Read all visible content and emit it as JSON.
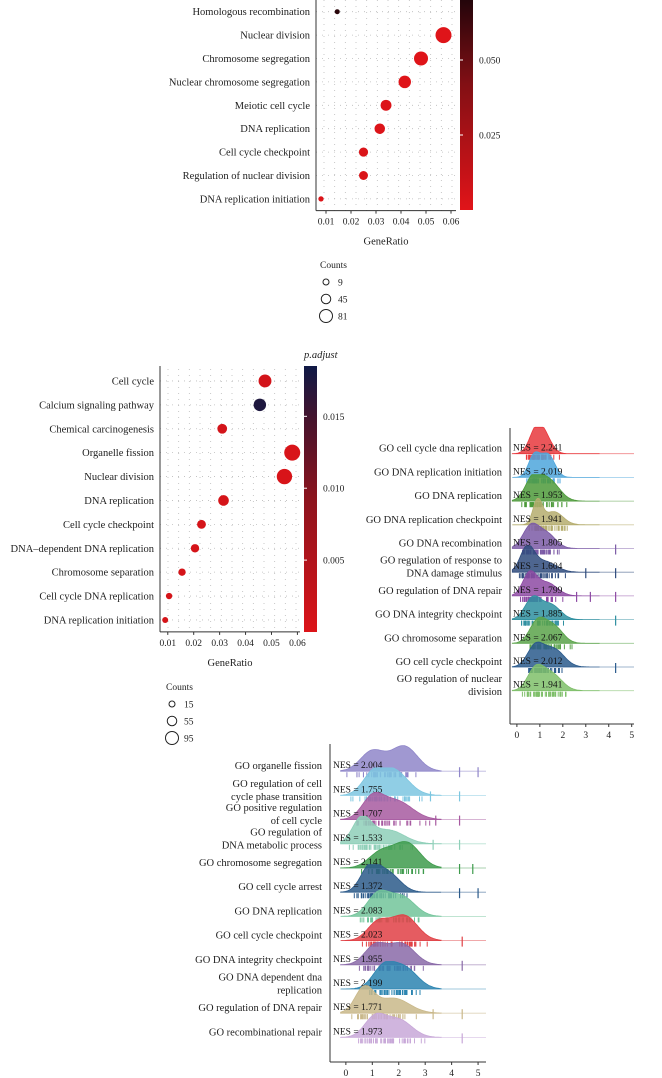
{
  "chart_data": [
    {
      "id": "dot1",
      "type": "scatter",
      "subtype": "dotplot",
      "xlabel": "GeneRatio",
      "xlim": [
        0.006,
        0.062
      ],
      "xticks": [
        "0.01",
        "0.02",
        "0.03",
        "0.04",
        "0.05",
        "0.06"
      ],
      "xtick_values": [
        0.01,
        0.02,
        0.03,
        0.04,
        0.05,
        0.06
      ],
      "colorbar_title": "",
      "colorbar_range": [
        0.0,
        0.07
      ],
      "colorbar_ticks": [
        "0.050",
        "0.025"
      ],
      "colorbar_tick_values": [
        0.05,
        0.025
      ],
      "size_legend_title": "Counts",
      "size_legend": [
        {
          "label": "9",
          "value": 9
        },
        {
          "label": "45",
          "value": 45
        },
        {
          "label": "81",
          "value": 81
        }
      ],
      "size_range": [
        9,
        81
      ],
      "terms": [
        {
          "term": "Homologous recombination",
          "ratio": 0.0145,
          "count": 9,
          "p": 0.068
        },
        {
          "term": "Nuclear division",
          "ratio": 0.057,
          "count": 81,
          "p": 0.001
        },
        {
          "term": "Chromosome segregation",
          "ratio": 0.048,
          "count": 68,
          "p": 0.001
        },
        {
          "term": "Nuclear chromosome segregation",
          "ratio": 0.0415,
          "count": 58,
          "p": 0.001
        },
        {
          "term": "Meiotic cell cycle",
          "ratio": 0.034,
          "count": 48,
          "p": 0.002
        },
        {
          "term": "DNA replication",
          "ratio": 0.0315,
          "count": 45,
          "p": 0.002
        },
        {
          "term": "Cell cycle checkpoint",
          "ratio": 0.025,
          "count": 36,
          "p": 0.003
        },
        {
          "term": "Regulation of nuclear division",
          "ratio": 0.025,
          "count": 35,
          "p": 0.003
        },
        {
          "term": "DNA replication initiation",
          "ratio": 0.008,
          "count": 11,
          "p": 0.002
        }
      ]
    },
    {
      "id": "dot2",
      "type": "scatter",
      "subtype": "dotplot",
      "xlabel": "GeneRatio",
      "xlim": [
        0.007,
        0.061
      ],
      "xticks": [
        "0.01",
        "0.02",
        "0.03",
        "0.04",
        "0.05",
        "0.06"
      ],
      "xtick_values": [
        0.01,
        0.02,
        0.03,
        0.04,
        0.05,
        0.06
      ],
      "colorbar_title": "p.adjust",
      "colorbar_range": [
        0.0,
        0.0185
      ],
      "colorbar_ticks": [
        "0.015",
        "0.010",
        "0.005"
      ],
      "colorbar_tick_values": [
        0.015,
        0.01,
        0.005
      ],
      "size_legend_title": "Counts",
      "size_legend": [
        {
          "label": "15",
          "value": 15
        },
        {
          "label": "55",
          "value": 55
        },
        {
          "label": "95",
          "value": 95
        }
      ],
      "size_range": [
        15,
        95
      ],
      "terms": [
        {
          "term": "Cell cycle",
          "ratio": 0.0475,
          "count": 70,
          "p": 0.001
        },
        {
          "term": "Calcium signaling pathway",
          "ratio": 0.0455,
          "count": 67,
          "p": 0.0175
        },
        {
          "term": "Chemical carcinogenesis",
          "ratio": 0.031,
          "count": 45,
          "p": 0.001
        },
        {
          "term": "Organelle fission",
          "ratio": 0.058,
          "count": 95,
          "p": 0.0005
        },
        {
          "term": "Nuclear division",
          "ratio": 0.055,
          "count": 90,
          "p": 0.0005
        },
        {
          "term": "DNA replication",
          "ratio": 0.0315,
          "count": 52,
          "p": 0.0008
        },
        {
          "term": "Cell cycle checkpoint",
          "ratio": 0.023,
          "count": 38,
          "p": 0.0008
        },
        {
          "term": "DNA–dependent DNA replication",
          "ratio": 0.0205,
          "count": 34,
          "p": 0.0008
        },
        {
          "term": "Chromosome separation",
          "ratio": 0.0155,
          "count": 26,
          "p": 0.0008
        },
        {
          "term": "Cell cycle DNA replication",
          "ratio": 0.0105,
          "count": 18,
          "p": 0.0008
        },
        {
          "term": "DNA replication initiation",
          "ratio": 0.009,
          "count": 15,
          "p": 0.0008
        }
      ]
    },
    {
      "id": "ridge1",
      "type": "area",
      "subtype": "ridgeplot",
      "xlim": [
        -0.3,
        5.1
      ],
      "xticks": [
        "0",
        "1",
        "2",
        "3",
        "4",
        "5"
      ],
      "xtick_values": [
        0,
        1,
        2,
        3,
        4,
        5
      ],
      "series": [
        {
          "term": "GO cell cycle dna replication",
          "nes_text": "NES = 2.241",
          "color": "#e8383d",
          "peaks": [
            [
              0.85,
              0.3,
              1.0
            ],
            [
              1.25,
              0.3,
              0.55
            ]
          ],
          "outliers": []
        },
        {
          "term": "GO DNA replication initiation",
          "nes_text": "NES = 2.019",
          "color": "#4ea6dc",
          "peaks": [
            [
              0.75,
              0.25,
              0.9
            ],
            [
              1.35,
              0.3,
              0.95
            ]
          ],
          "outliers": []
        },
        {
          "term": "GO DNA replication",
          "nes_text": "NES = 1.953",
          "color": "#4d9a3a",
          "peaks": [
            [
              0.7,
              0.35,
              0.9
            ],
            [
              1.4,
              0.45,
              0.85
            ]
          ],
          "outliers": []
        },
        {
          "term": "GO DNA replication checkpoint",
          "nes_text": "NES = 1.941",
          "color": "#b5ad6e",
          "peaks": [
            [
              0.9,
              0.2,
              1.0
            ],
            [
              1.6,
              0.4,
              0.55
            ]
          ],
          "outliers": []
        },
        {
          "term": "GO DNA recombination",
          "nes_text": "NES = 1.805",
          "color": "#7b5aa6",
          "peaks": [
            [
              0.6,
              0.35,
              0.9
            ],
            [
              1.3,
              0.4,
              0.6
            ]
          ],
          "outliers": [
            4.3
          ]
        },
        {
          "term": "GO regulation of response to DNA damage stimulus",
          "nes_text": "NES = 1.604",
          "color": "#2f4b7c",
          "peaks": [
            [
              0.45,
              0.3,
              1.0
            ],
            [
              1.2,
              0.5,
              0.45
            ]
          ],
          "outliers": [
            3.0,
            4.3
          ]
        },
        {
          "term": "GO regulation of DNA repair",
          "nes_text": "NES = 1.799",
          "color": "#8d4aa3",
          "peaks": [
            [
              0.55,
              0.3,
              0.9
            ],
            [
              1.3,
              0.45,
              0.55
            ]
          ],
          "outliers": [
            2.6,
            3.2,
            4.3
          ]
        },
        {
          "term": "GO DNA integrity checkpoint",
          "nes_text": "NES = 1.885",
          "color": "#2e8fa0",
          "peaks": [
            [
              0.7,
              0.35,
              0.9
            ],
            [
              1.5,
              0.4,
              0.6
            ]
          ],
          "outliers": [
            4.3
          ]
        },
        {
          "term": "GO chromosome separation",
          "nes_text": "NES = 2.067",
          "color": "#5aa34a",
          "peaks": [
            [
              0.9,
              0.35,
              0.9
            ],
            [
              1.6,
              0.4,
              0.7
            ]
          ],
          "outliers": []
        },
        {
          "term": "GO cell cycle checkpoint",
          "nes_text": "NES = 2.012",
          "color": "#2a5a8c",
          "peaks": [
            [
              0.8,
              0.35,
              0.85
            ],
            [
              1.6,
              0.45,
              0.75
            ]
          ],
          "outliers": [
            4.3
          ]
        },
        {
          "term": "GO regulation of nuclear division",
          "nes_text": "NES = 1.941",
          "color": "#7fbf6a",
          "peaks": [
            [
              0.8,
              0.35,
              0.85
            ],
            [
              1.5,
              0.45,
              0.7
            ]
          ],
          "outliers": []
        }
      ]
    },
    {
      "id": "ridge2",
      "type": "area",
      "subtype": "ridgeplot",
      "xlim": [
        -0.6,
        5.3
      ],
      "xticks": [
        "0",
        "1",
        "2",
        "3",
        "4",
        "5"
      ],
      "xtick_values": [
        0,
        1,
        2,
        3,
        4,
        5
      ],
      "series": [
        {
          "term": "GO organelle fission",
          "nes_text": "NES = 2.004",
          "color": "#8f86c9",
          "peaks": [
            [
              1.0,
              0.45,
              0.8
            ],
            [
              2.2,
              0.5,
              1.0
            ]
          ],
          "outliers": [
            4.3,
            5.0
          ]
        },
        {
          "term": "GO regulation of cell cycle phase transition",
          "nes_text": "NES = 1.755",
          "color": "#7cc6e0",
          "peaks": [
            [
              1.0,
              0.4,
              0.7
            ],
            [
              1.8,
              0.55,
              1.0
            ]
          ],
          "outliers": [
            3.2,
            4.3
          ]
        },
        {
          "term": "GO positive regulation of cell cycle",
          "nes_text": "NES = 1.707",
          "color": "#a75aa0",
          "peaks": [
            [
              1.0,
              0.4,
              0.8
            ],
            [
              1.9,
              0.6,
              0.75
            ]
          ],
          "outliers": [
            3.4,
            4.3
          ]
        },
        {
          "term": "GO regulation of DNA metabolic process",
          "nes_text": "NES = 1.533",
          "color": "#8ecfb8",
          "peaks": [
            [
              0.6,
              0.35,
              1.0
            ],
            [
              1.6,
              0.6,
              0.55
            ]
          ],
          "outliers": [
            3.3,
            4.3
          ]
        },
        {
          "term": "GO chromosome segregation",
          "nes_text": "NES = 2.141",
          "color": "#3e9b4c",
          "peaks": [
            [
              1.3,
              0.45,
              0.6
            ],
            [
              2.3,
              0.5,
              1.0
            ]
          ],
          "outliers": [
            4.3,
            4.8
          ]
        },
        {
          "term": "GO cell cycle arrest",
          "nes_text": "NES = 1.372",
          "color": "#2c5a8a",
          "peaks": [
            [
              0.9,
              0.35,
              0.95
            ],
            [
              1.6,
              0.45,
              0.75
            ]
          ],
          "outliers": [
            4.3,
            5.0
          ]
        },
        {
          "term": "GO DNA replication",
          "nes_text": "NES = 2.083",
          "color": "#72c49a",
          "peaks": [
            [
              1.2,
              0.4,
              0.85
            ],
            [
              2.1,
              0.5,
              0.8
            ]
          ],
          "outliers": []
        },
        {
          "term": "GO cell cycle checkpoint",
          "nes_text": "NES = 2.023",
          "color": "#e04045",
          "peaks": [
            [
              1.2,
              0.4,
              0.7
            ],
            [
              2.2,
              0.5,
              1.0
            ]
          ],
          "outliers": [
            4.4
          ]
        },
        {
          "term": "GO DNA integrity checkpoint",
          "nes_text": "NES = 1.955",
          "color": "#8a6aa8",
          "peaks": [
            [
              1.1,
              0.4,
              0.75
            ],
            [
              2.1,
              0.5,
              0.85
            ]
          ],
          "outliers": [
            4.4
          ]
        },
        {
          "term": "GO DNA dependent dna replication",
          "nes_text": "NES = 2.199",
          "color": "#2b84b0",
          "peaks": [
            [
              1.4,
              0.4,
              0.8
            ],
            [
              2.2,
              0.5,
              0.85
            ]
          ],
          "outliers": []
        },
        {
          "term": "GO regulation of DNA repair",
          "nes_text": "NES = 1.771",
          "color": "#c9b88a",
          "peaks": [
            [
              0.7,
              0.35,
              1.0
            ],
            [
              1.8,
              0.6,
              0.6
            ]
          ],
          "outliers": [
            3.3,
            4.4
          ]
        },
        {
          "term": "GO recombinational repair",
          "nes_text": "NES = 1.973",
          "color": "#c8a8d8",
          "peaks": [
            [
              1.1,
              0.4,
              0.8
            ],
            [
              2.0,
              0.5,
              0.7
            ]
          ],
          "outliers": [
            4.4
          ]
        }
      ]
    }
  ]
}
